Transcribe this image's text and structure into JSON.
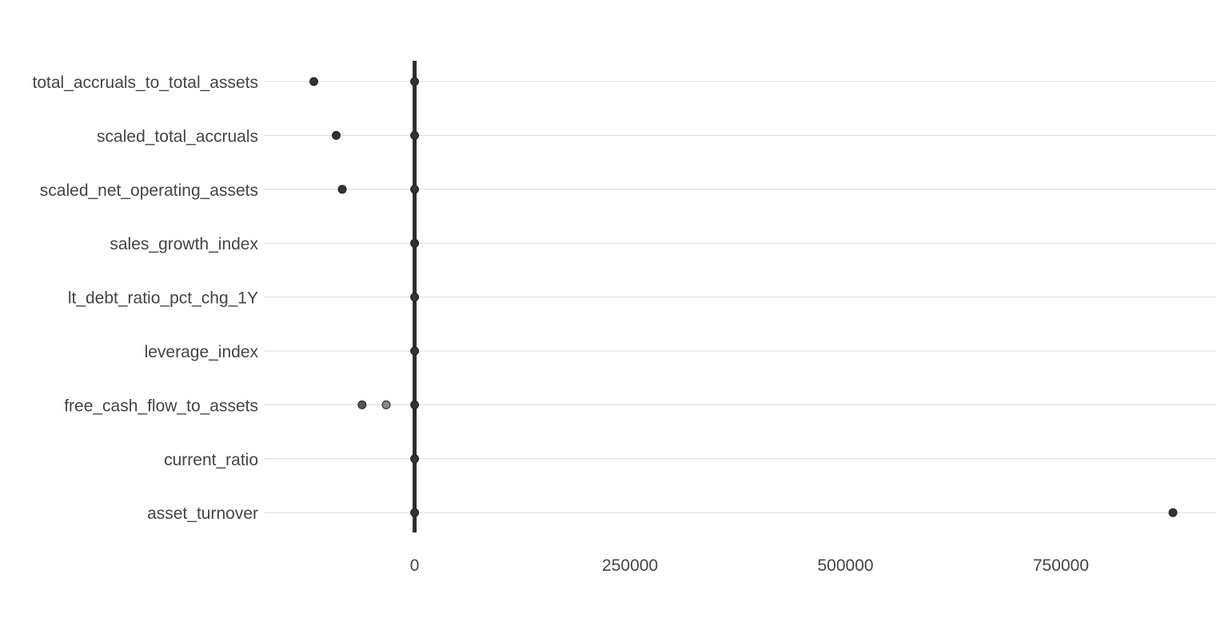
{
  "chart_data": {
    "type": "scatter",
    "title": "",
    "xlabel": "",
    "ylabel": "",
    "categories": [
      "total_accruals_to_total_assets",
      "scaled_total_accruals",
      "scaled_net_operating_assets",
      "sales_growth_index",
      "lt_debt_ratio_pct_chg_1Y",
      "leverage_index",
      "free_cash_flow_to_assets",
      "current_ratio",
      "asset_turnover"
    ],
    "xlim": [
      -175000,
      930000
    ],
    "x_ticks": [
      0,
      250000,
      500000,
      750000
    ],
    "x_tick_labels": [
      "0",
      "250000",
      "500000",
      "750000"
    ],
    "reference_line_x": 0,
    "points": [
      {
        "category": "total_accruals_to_total_assets",
        "x": -117000,
        "color": "#333333"
      },
      {
        "category": "total_accruals_to_total_assets",
        "x": 0,
        "color": "#333333"
      },
      {
        "category": "scaled_total_accruals",
        "x": -91000,
        "color": "#333333"
      },
      {
        "category": "scaled_total_accruals",
        "x": 0,
        "color": "#333333"
      },
      {
        "category": "scaled_net_operating_assets",
        "x": -84000,
        "color": "#333333"
      },
      {
        "category": "scaled_net_operating_assets",
        "x": 0,
        "color": "#333333"
      },
      {
        "category": "sales_growth_index",
        "x": 0,
        "color": "#333333"
      },
      {
        "category": "lt_debt_ratio_pct_chg_1Y",
        "x": 0,
        "color": "#333333"
      },
      {
        "category": "leverage_index",
        "x": 0,
        "color": "#333333"
      },
      {
        "category": "free_cash_flow_to_assets",
        "x": -61000,
        "color": "#555555"
      },
      {
        "category": "free_cash_flow_to_assets",
        "x": -33000,
        "color": "#888888"
      },
      {
        "category": "free_cash_flow_to_assets",
        "x": 0,
        "color": "#333333"
      },
      {
        "category": "current_ratio",
        "x": 0,
        "color": "#333333"
      },
      {
        "category": "asset_turnover",
        "x": 0,
        "color": "#333333"
      },
      {
        "category": "asset_turnover",
        "x": 880000,
        "color": "#333333"
      }
    ],
    "grid": true,
    "legend": "none"
  }
}
